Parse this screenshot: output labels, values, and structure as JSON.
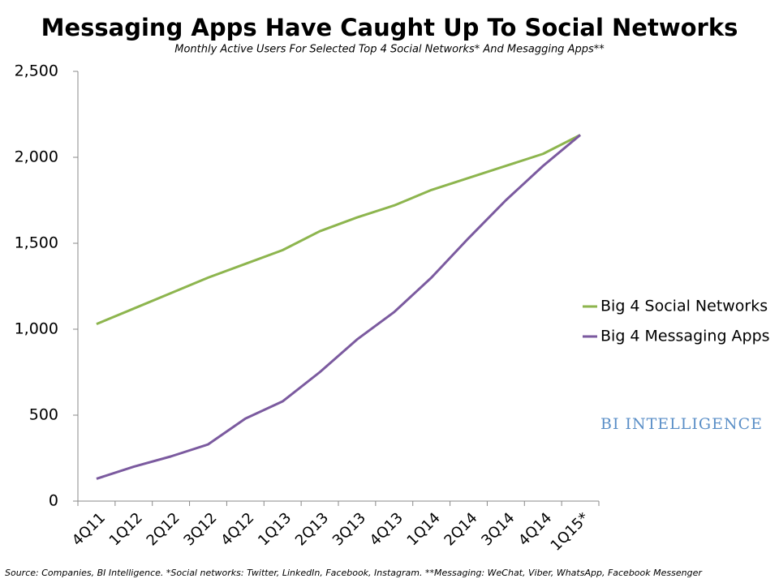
{
  "chart_data": {
    "type": "line",
    "title": "Messaging Apps Have Caught Up To Social Networks",
    "subtitle": "Monthly Active Users For Selected Top 4 Social Networks* And Mesagging Apps**",
    "categories": [
      "4Q11",
      "1Q12",
      "2Q12",
      "3Q12",
      "4Q12",
      "1Q13",
      "2Q13",
      "3Q13",
      "4Q13",
      "1Q14",
      "2Q14",
      "3Q14",
      "4Q14",
      "1Q15*"
    ],
    "series": [
      {
        "name": "Big 4 Social Networks",
        "color": "#8db54e",
        "values": [
          1030,
          1120,
          1210,
          1300,
          1380,
          1460,
          1570,
          1650,
          1720,
          1810,
          1880,
          1950,
          2020,
          2130
        ]
      },
      {
        "name": "Big 4 Messaging Apps",
        "color": "#7b5a9f",
        "values": [
          130,
          200,
          260,
          330,
          480,
          580,
          750,
          940,
          1100,
          1300,
          1530,
          1750,
          1950,
          2130
        ]
      }
    ],
    "ylim": [
      0,
      2500
    ],
    "yticks": [
      0,
      500,
      {
        "value": 1000,
        "label": "1,000"
      },
      {
        "value": 1500,
        "label": "1,500"
      },
      {
        "value": 2000,
        "label": "2,000"
      },
      {
        "value": 2500,
        "label": "2,500"
      }
    ],
    "grid": false,
    "legend": "right",
    "watermark": "BI INTELLIGENCE",
    "source": "Source: Companies, BI Intelligence. *Social networks: Twitter, LinkedIn, Facebook, Instagram. **Messaging: WeChat, Viber, WhatsApp, Facebook Messenger"
  }
}
